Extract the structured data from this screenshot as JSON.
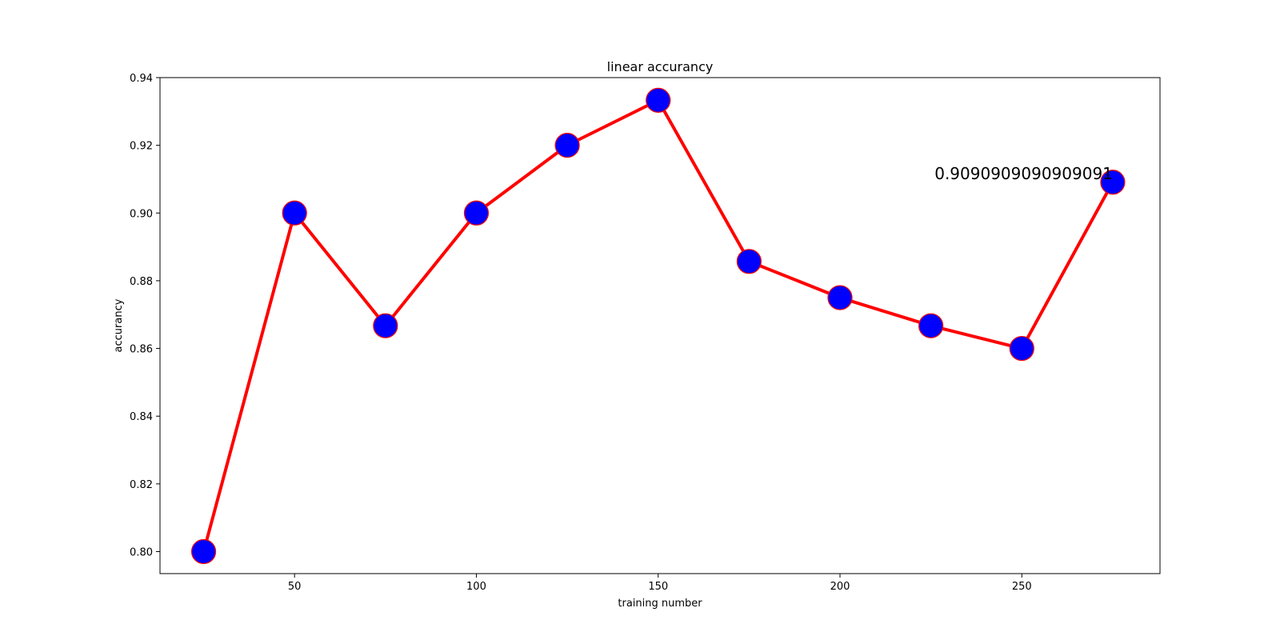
{
  "chart_data": {
    "type": "line",
    "title": "linear accurancy",
    "xlabel": "training number",
    "ylabel": "accurancy",
    "xlim": [
      13,
      288
    ],
    "ylim": [
      0.7935,
      0.94
    ],
    "xticks": [
      50,
      100,
      150,
      200,
      250
    ],
    "yticks": [
      0.8,
      0.82,
      0.84,
      0.86,
      0.88,
      0.9,
      0.92,
      0.94
    ],
    "grid": false,
    "series": [
      {
        "x": [
          25,
          50,
          75,
          100,
          125,
          150,
          175,
          200,
          225,
          250,
          275
        ],
        "values": [
          0.8,
          0.9,
          0.8667,
          0.9,
          0.92,
          0.9333,
          0.8857,
          0.875,
          0.8667,
          0.86,
          0.9091
        ],
        "line_color": "#ff0000",
        "marker_fill": "#0000ff",
        "marker_edge": "#ff0000"
      }
    ],
    "annotations": [
      {
        "text": "0.9090909090909091",
        "x": 275,
        "y": 0.9091
      }
    ]
  }
}
